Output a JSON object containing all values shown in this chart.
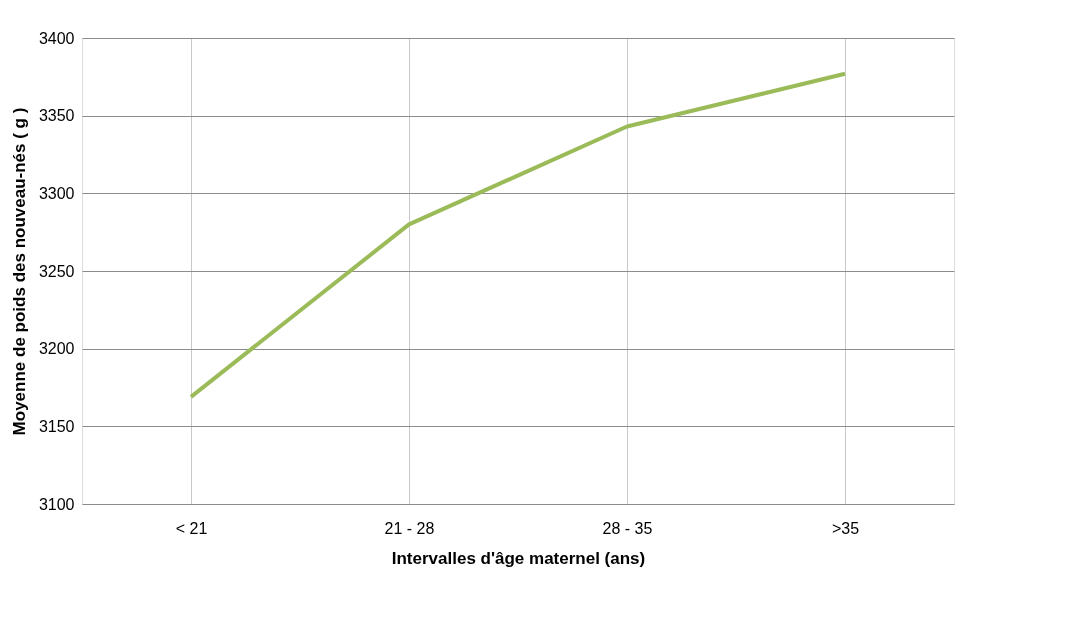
{
  "chart_data": {
    "type": "line",
    "xlabel": "Intervalles d'âge maternel (ans)",
    "ylabel": "Moyenne de poids des nouveau-nés ( g )",
    "categories": [
      "< 21",
      "21 - 28",
      "28 - 35",
      ">35"
    ],
    "series": [
      {
        "color": "#9bbb59",
        "values": [
          3169,
          3280,
          3343,
          3377
        ]
      }
    ],
    "ylim": [
      3100,
      3400
    ],
    "yticks": [
      3100,
      3150,
      3200,
      3250,
      3300,
      3350,
      3400
    ],
    "grid": true,
    "marker": "none",
    "line_style": "solid"
  }
}
